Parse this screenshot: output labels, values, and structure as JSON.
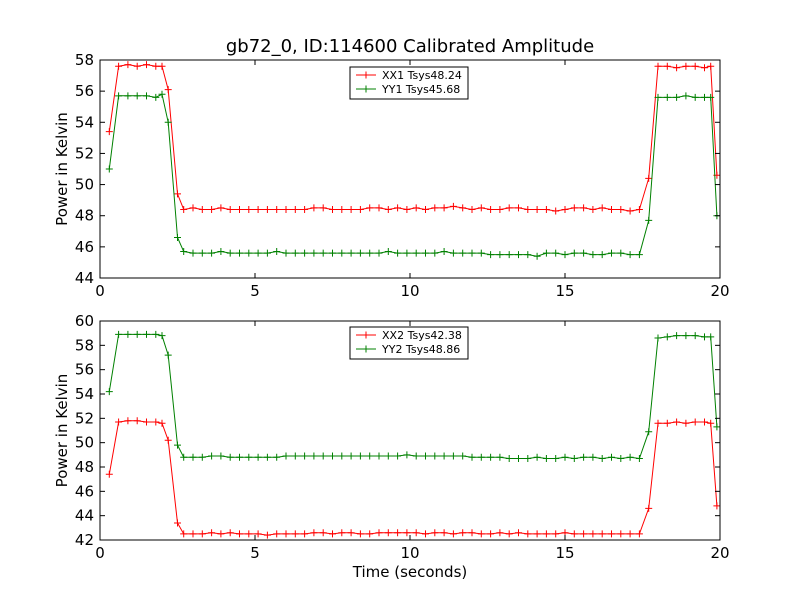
{
  "figure_title": "gb72_0, ID:114600 Calibrated Amplitude",
  "colors": {
    "xx": "#ff0000",
    "yy": "#008000"
  },
  "chart_data": [
    {
      "type": "line",
      "title": "gb72_0, ID:114600 Calibrated Amplitude",
      "xlabel": "",
      "ylabel": "Power in Kelvin",
      "xlim": [
        0,
        20
      ],
      "ylim": [
        44,
        58
      ],
      "xticks": [
        0,
        5,
        10,
        15,
        20
      ],
      "yticks": [
        44,
        46,
        48,
        50,
        52,
        54,
        56,
        58
      ],
      "grid": false,
      "legend_position": "top-center",
      "marker": "+",
      "series": [
        {
          "name": "XX1 Tsys48.24",
          "color": "#ff0000",
          "x": [
            0.3,
            0.6,
            0.9,
            1.2,
            1.5,
            1.8,
            2.0,
            2.2,
            2.5,
            2.7,
            3.0,
            3.3,
            3.6,
            3.9,
            4.2,
            4.5,
            4.8,
            5.1,
            5.4,
            5.7,
            6.0,
            6.3,
            6.6,
            6.9,
            7.2,
            7.5,
            7.8,
            8.1,
            8.4,
            8.7,
            9.0,
            9.3,
            9.6,
            9.9,
            10.2,
            10.5,
            10.8,
            11.1,
            11.4,
            11.7,
            12.0,
            12.3,
            12.6,
            12.9,
            13.2,
            13.5,
            13.8,
            14.1,
            14.4,
            14.7,
            15.0,
            15.3,
            15.6,
            15.9,
            16.2,
            16.5,
            16.8,
            17.1,
            17.4,
            17.7,
            18.0,
            18.3,
            18.6,
            18.9,
            19.2,
            19.5,
            19.7,
            19.9
          ],
          "y": [
            53.4,
            57.6,
            57.7,
            57.6,
            57.7,
            57.6,
            57.6,
            56.1,
            49.4,
            48.4,
            48.5,
            48.4,
            48.4,
            48.5,
            48.4,
            48.4,
            48.4,
            48.4,
            48.4,
            48.4,
            48.4,
            48.4,
            48.4,
            48.5,
            48.5,
            48.4,
            48.4,
            48.4,
            48.4,
            48.5,
            48.5,
            48.4,
            48.5,
            48.4,
            48.5,
            48.4,
            48.5,
            48.5,
            48.6,
            48.5,
            48.4,
            48.5,
            48.4,
            48.4,
            48.5,
            48.5,
            48.4,
            48.4,
            48.4,
            48.3,
            48.4,
            48.5,
            48.5,
            48.4,
            48.5,
            48.4,
            48.4,
            48.3,
            48.4,
            50.4,
            57.6,
            57.6,
            57.5,
            57.6,
            57.6,
            57.5,
            57.6,
            50.6
          ]
        },
        {
          "name": "YY1 Tsys45.68",
          "color": "#008000",
          "x": [
            0.3,
            0.6,
            0.9,
            1.2,
            1.5,
            1.8,
            2.0,
            2.2,
            2.5,
            2.7,
            3.0,
            3.3,
            3.6,
            3.9,
            4.2,
            4.5,
            4.8,
            5.1,
            5.4,
            5.7,
            6.0,
            6.3,
            6.6,
            6.9,
            7.2,
            7.5,
            7.8,
            8.1,
            8.4,
            8.7,
            9.0,
            9.3,
            9.6,
            9.9,
            10.2,
            10.5,
            10.8,
            11.1,
            11.4,
            11.7,
            12.0,
            12.3,
            12.6,
            12.9,
            13.2,
            13.5,
            13.8,
            14.1,
            14.4,
            14.7,
            15.0,
            15.3,
            15.6,
            15.9,
            16.2,
            16.5,
            16.8,
            17.1,
            17.4,
            17.7,
            18.0,
            18.3,
            18.6,
            18.9,
            19.2,
            19.5,
            19.7,
            19.9
          ],
          "y": [
            51.0,
            55.7,
            55.7,
            55.7,
            55.7,
            55.6,
            55.8,
            54.0,
            46.6,
            45.7,
            45.6,
            45.6,
            45.6,
            45.7,
            45.6,
            45.6,
            45.6,
            45.6,
            45.6,
            45.7,
            45.6,
            45.6,
            45.6,
            45.6,
            45.6,
            45.6,
            45.6,
            45.6,
            45.6,
            45.6,
            45.6,
            45.7,
            45.6,
            45.6,
            45.6,
            45.6,
            45.6,
            45.7,
            45.6,
            45.6,
            45.6,
            45.6,
            45.5,
            45.5,
            45.5,
            45.5,
            45.5,
            45.4,
            45.6,
            45.6,
            45.5,
            45.6,
            45.6,
            45.5,
            45.5,
            45.6,
            45.6,
            45.5,
            45.5,
            47.7,
            55.6,
            55.6,
            55.6,
            55.7,
            55.6,
            55.6,
            55.6,
            48.0
          ]
        }
      ]
    },
    {
      "type": "line",
      "title": "",
      "xlabel": "Time (seconds)",
      "ylabel": "Power in Kelvin",
      "xlim": [
        0,
        20
      ],
      "ylim": [
        42,
        60
      ],
      "xticks": [
        0,
        5,
        10,
        15,
        20
      ],
      "yticks": [
        42,
        44,
        46,
        48,
        50,
        52,
        54,
        56,
        58,
        60
      ],
      "grid": false,
      "legend_position": "top-center",
      "marker": "+",
      "series": [
        {
          "name": "XX2 Tsys42.38",
          "color": "#ff0000",
          "x": [
            0.3,
            0.6,
            0.9,
            1.2,
            1.5,
            1.8,
            2.0,
            2.2,
            2.5,
            2.7,
            3.0,
            3.3,
            3.6,
            3.9,
            4.2,
            4.5,
            4.8,
            5.1,
            5.4,
            5.7,
            6.0,
            6.3,
            6.6,
            6.9,
            7.2,
            7.5,
            7.8,
            8.1,
            8.4,
            8.7,
            9.0,
            9.3,
            9.6,
            9.9,
            10.2,
            10.5,
            10.8,
            11.1,
            11.4,
            11.7,
            12.0,
            12.3,
            12.6,
            12.9,
            13.2,
            13.5,
            13.8,
            14.1,
            14.4,
            14.7,
            15.0,
            15.3,
            15.6,
            15.9,
            16.2,
            16.5,
            16.8,
            17.1,
            17.4,
            17.7,
            18.0,
            18.3,
            18.6,
            18.9,
            19.2,
            19.5,
            19.7,
            19.9
          ],
          "y": [
            47.4,
            51.7,
            51.8,
            51.8,
            51.7,
            51.7,
            51.6,
            50.2,
            43.4,
            42.5,
            42.5,
            42.5,
            42.6,
            42.5,
            42.6,
            42.5,
            42.5,
            42.5,
            42.4,
            42.5,
            42.5,
            42.5,
            42.5,
            42.6,
            42.6,
            42.5,
            42.6,
            42.6,
            42.5,
            42.5,
            42.6,
            42.6,
            42.6,
            42.6,
            42.6,
            42.5,
            42.6,
            42.6,
            42.5,
            42.6,
            42.6,
            42.5,
            42.5,
            42.6,
            42.5,
            42.6,
            42.5,
            42.5,
            42.5,
            42.5,
            42.6,
            42.5,
            42.5,
            42.5,
            42.5,
            42.5,
            42.5,
            42.5,
            42.5,
            44.6,
            51.6,
            51.6,
            51.7,
            51.6,
            51.7,
            51.7,
            51.6,
            44.8
          ]
        },
        {
          "name": "YY2 Tsys48.86",
          "color": "#008000",
          "x": [
            0.3,
            0.6,
            0.9,
            1.2,
            1.5,
            1.8,
            2.0,
            2.2,
            2.5,
            2.7,
            3.0,
            3.3,
            3.6,
            3.9,
            4.2,
            4.5,
            4.8,
            5.1,
            5.4,
            5.7,
            6.0,
            6.3,
            6.6,
            6.9,
            7.2,
            7.5,
            7.8,
            8.1,
            8.4,
            8.7,
            9.0,
            9.3,
            9.6,
            9.9,
            10.2,
            10.5,
            10.8,
            11.1,
            11.4,
            11.7,
            12.0,
            12.3,
            12.6,
            12.9,
            13.2,
            13.5,
            13.8,
            14.1,
            14.4,
            14.7,
            15.0,
            15.3,
            15.6,
            15.9,
            16.2,
            16.5,
            16.8,
            17.1,
            17.4,
            17.7,
            18.0,
            18.3,
            18.6,
            18.9,
            19.2,
            19.5,
            19.7,
            19.9
          ],
          "y": [
            54.2,
            58.9,
            58.9,
            58.9,
            58.9,
            58.9,
            58.8,
            57.2,
            49.8,
            48.8,
            48.8,
            48.8,
            48.9,
            48.9,
            48.8,
            48.8,
            48.8,
            48.8,
            48.8,
            48.8,
            48.9,
            48.9,
            48.9,
            48.9,
            48.9,
            48.9,
            48.9,
            48.9,
            48.9,
            48.9,
            48.9,
            48.9,
            48.9,
            49.0,
            48.9,
            48.9,
            48.9,
            48.9,
            48.9,
            48.9,
            48.8,
            48.8,
            48.8,
            48.8,
            48.7,
            48.7,
            48.7,
            48.8,
            48.7,
            48.7,
            48.8,
            48.7,
            48.8,
            48.8,
            48.7,
            48.8,
            48.7,
            48.8,
            48.7,
            50.9,
            58.6,
            58.7,
            58.8,
            58.8,
            58.8,
            58.7,
            58.7,
            51.3
          ]
        }
      ]
    }
  ]
}
